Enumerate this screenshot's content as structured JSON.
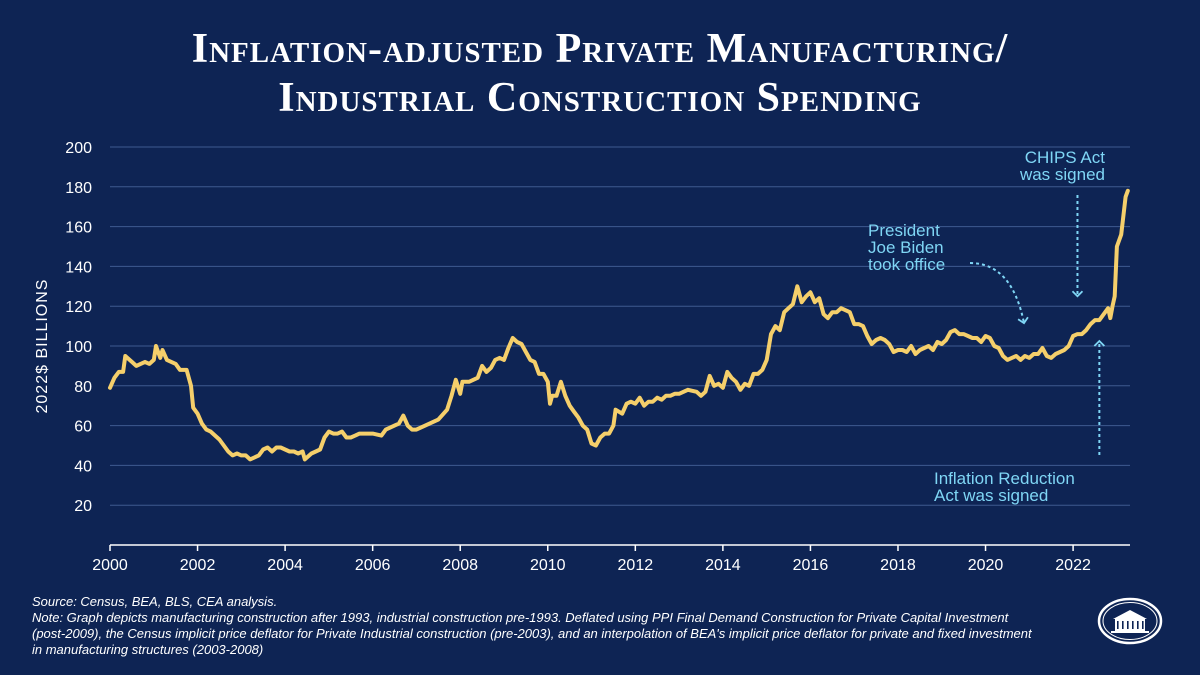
{
  "title_line1": "Inflation-adjusted Private Manufacturing/",
  "title_line2": "Industrial Construction Spending",
  "source": "Source: Census, BEA, BLS, CEA analysis.",
  "note": "Note: Graph depicts manufacturing construction after 1993, industrial construction pre-1993. Deflated using PPI Final Demand Construction for Private Capital Investment (post-2009), the Census implicit price deflator for Private Industrial construction (pre-2003), and an interpolation of BEA's implicit price deflator for private and fixed investment in manufacturing structures (2003-2008)",
  "colors": {
    "background": "#0e2454",
    "line": "#f5cf6b",
    "annotation": "#7fd6f5",
    "grid": "#3f5a8f",
    "text": "#ffffff"
  },
  "logo_icon": "white-house-seal-icon",
  "chart_data": {
    "type": "line",
    "ylabel": "2022$ BILLIONS",
    "xlabel": "",
    "xlim": [
      2000,
      2023.3
    ],
    "ylim": [
      0,
      200
    ],
    "x_ticks": [
      2000,
      2002,
      2004,
      2006,
      2008,
      2010,
      2012,
      2014,
      2016,
      2018,
      2020,
      2022
    ],
    "y_ticks": [
      20,
      40,
      60,
      80,
      100,
      120,
      140,
      160,
      180,
      200
    ],
    "grid": true,
    "annotations": [
      {
        "lines": [
          "CHIPS Act",
          "was signed"
        ],
        "x": 2022.1,
        "y": 120,
        "arrow": "down"
      },
      {
        "lines": [
          "President",
          "Joe Biden",
          "took office"
        ],
        "x": 2021.1,
        "y": 113,
        "arrow": "curved"
      },
      {
        "lines": [
          "Inflation Reduction",
          "Act was signed"
        ],
        "x": 2022.6,
        "y": 104,
        "arrow": "up"
      }
    ],
    "series": [
      {
        "points": [
          [
            2000.0,
            79
          ],
          [
            2000.1,
            84
          ],
          [
            2000.2,
            87
          ],
          [
            2000.3,
            87
          ],
          [
            2000.35,
            95
          ],
          [
            2000.5,
            92
          ],
          [
            2000.6,
            90
          ],
          [
            2000.7,
            91
          ],
          [
            2000.8,
            92
          ],
          [
            2000.9,
            91
          ],
          [
            2001.0,
            93
          ],
          [
            2001.05,
            100
          ],
          [
            2001.15,
            94
          ],
          [
            2001.2,
            98
          ],
          [
            2001.3,
            93
          ],
          [
            2001.4,
            92
          ],
          [
            2001.5,
            91
          ],
          [
            2001.6,
            88
          ],
          [
            2001.75,
            88
          ],
          [
            2001.85,
            80
          ],
          [
            2001.9,
            69
          ],
          [
            2002.0,
            66
          ],
          [
            2002.1,
            61
          ],
          [
            2002.2,
            58
          ],
          [
            2002.3,
            57
          ],
          [
            2002.4,
            55
          ],
          [
            2002.5,
            53
          ],
          [
            2002.6,
            50
          ],
          [
            2002.7,
            47
          ],
          [
            2002.8,
            45
          ],
          [
            2002.9,
            46
          ],
          [
            2003.0,
            45
          ],
          [
            2003.1,
            45
          ],
          [
            2003.2,
            43
          ],
          [
            2003.3,
            44
          ],
          [
            2003.4,
            45
          ],
          [
            2003.5,
            48
          ],
          [
            2003.6,
            49
          ],
          [
            2003.7,
            47
          ],
          [
            2003.8,
            49
          ],
          [
            2003.9,
            49
          ],
          [
            2004.0,
            48
          ],
          [
            2004.1,
            47
          ],
          [
            2004.2,
            47
          ],
          [
            2004.3,
            46
          ],
          [
            2004.4,
            47
          ],
          [
            2004.45,
            43
          ],
          [
            2004.6,
            46
          ],
          [
            2004.7,
            47
          ],
          [
            2004.8,
            48
          ],
          [
            2004.9,
            54
          ],
          [
            2005.0,
            57
          ],
          [
            2005.1,
            56
          ],
          [
            2005.2,
            56
          ],
          [
            2005.3,
            57
          ],
          [
            2005.4,
            54
          ],
          [
            2005.5,
            54
          ],
          [
            2005.6,
            55
          ],
          [
            2005.7,
            56
          ],
          [
            2005.8,
            56
          ],
          [
            2005.9,
            56
          ],
          [
            2006.0,
            56
          ],
          [
            2006.2,
            55
          ],
          [
            2006.3,
            58
          ],
          [
            2006.4,
            59
          ],
          [
            2006.5,
            60
          ],
          [
            2006.6,
            61
          ],
          [
            2006.7,
            65
          ],
          [
            2006.8,
            60
          ],
          [
            2006.9,
            58
          ],
          [
            2007.0,
            58
          ],
          [
            2007.2,
            60
          ],
          [
            2007.4,
            62
          ],
          [
            2007.5,
            63
          ],
          [
            2007.7,
            68
          ],
          [
            2007.8,
            75
          ],
          [
            2007.9,
            83
          ],
          [
            2008.0,
            76
          ],
          [
            2008.05,
            82
          ],
          [
            2008.2,
            82
          ],
          [
            2008.4,
            84
          ],
          [
            2008.5,
            90
          ],
          [
            2008.6,
            87
          ],
          [
            2008.7,
            89
          ],
          [
            2008.8,
            93
          ],
          [
            2008.9,
            94
          ],
          [
            2009.0,
            93
          ],
          [
            2009.1,
            99
          ],
          [
            2009.2,
            104
          ],
          [
            2009.3,
            102
          ],
          [
            2009.4,
            101
          ],
          [
            2009.5,
            97
          ],
          [
            2009.6,
            93
          ],
          [
            2009.7,
            92
          ],
          [
            2009.8,
            86
          ],
          [
            2009.9,
            86
          ],
          [
            2010.0,
            82
          ],
          [
            2010.05,
            71
          ],
          [
            2010.1,
            75
          ],
          [
            2010.2,
            75
          ],
          [
            2010.3,
            82
          ],
          [
            2010.4,
            75
          ],
          [
            2010.5,
            70
          ],
          [
            2010.6,
            67
          ],
          [
            2010.7,
            64
          ],
          [
            2010.8,
            60
          ],
          [
            2010.9,
            58
          ],
          [
            2011.0,
            51
          ],
          [
            2011.1,
            50
          ],
          [
            2011.2,
            54
          ],
          [
            2011.3,
            56
          ],
          [
            2011.4,
            56
          ],
          [
            2011.5,
            60
          ],
          [
            2011.55,
            68
          ],
          [
            2011.7,
            66
          ],
          [
            2011.8,
            71
          ],
          [
            2011.9,
            72
          ],
          [
            2012.0,
            71
          ],
          [
            2012.1,
            74
          ],
          [
            2012.2,
            70
          ],
          [
            2012.3,
            72
          ],
          [
            2012.4,
            72
          ],
          [
            2012.5,
            74
          ],
          [
            2012.6,
            73
          ],
          [
            2012.7,
            75
          ],
          [
            2012.8,
            75
          ],
          [
            2012.9,
            76
          ],
          [
            2013.0,
            76
          ],
          [
            2013.2,
            78
          ],
          [
            2013.4,
            77
          ],
          [
            2013.5,
            75
          ],
          [
            2013.6,
            77
          ],
          [
            2013.7,
            85
          ],
          [
            2013.8,
            80
          ],
          [
            2013.9,
            81
          ],
          [
            2014.0,
            79
          ],
          [
            2014.1,
            87
          ],
          [
            2014.2,
            84
          ],
          [
            2014.3,
            82
          ],
          [
            2014.4,
            78
          ],
          [
            2014.5,
            81
          ],
          [
            2014.6,
            80
          ],
          [
            2014.7,
            86
          ],
          [
            2014.8,
            86
          ],
          [
            2014.9,
            88
          ],
          [
            2015.0,
            93
          ],
          [
            2015.1,
            106
          ],
          [
            2015.2,
            110
          ],
          [
            2015.3,
            108
          ],
          [
            2015.4,
            117
          ],
          [
            2015.5,
            119
          ],
          [
            2015.6,
            121
          ],
          [
            2015.7,
            130
          ],
          [
            2015.8,
            122
          ],
          [
            2015.9,
            125
          ],
          [
            2016.0,
            127
          ],
          [
            2016.1,
            122
          ],
          [
            2016.2,
            124
          ],
          [
            2016.3,
            116
          ],
          [
            2016.4,
            114
          ],
          [
            2016.5,
            117
          ],
          [
            2016.6,
            117
          ],
          [
            2016.7,
            119
          ],
          [
            2016.8,
            118
          ],
          [
            2016.9,
            117
          ],
          [
            2017.0,
            111
          ],
          [
            2017.1,
            111
          ],
          [
            2017.2,
            110
          ],
          [
            2017.3,
            105
          ],
          [
            2017.4,
            101
          ],
          [
            2017.5,
            103
          ],
          [
            2017.6,
            104
          ],
          [
            2017.7,
            103
          ],
          [
            2017.8,
            101
          ],
          [
            2017.9,
            97
          ],
          [
            2018.0,
            98
          ],
          [
            2018.1,
            98
          ],
          [
            2018.2,
            97
          ],
          [
            2018.3,
            100
          ],
          [
            2018.4,
            96
          ],
          [
            2018.5,
            98
          ],
          [
            2018.6,
            99
          ],
          [
            2018.7,
            100
          ],
          [
            2018.8,
            98
          ],
          [
            2018.9,
            102
          ],
          [
            2019.0,
            101
          ],
          [
            2019.1,
            103
          ],
          [
            2019.2,
            107
          ],
          [
            2019.3,
            108
          ],
          [
            2019.4,
            106
          ],
          [
            2019.5,
            106
          ],
          [
            2019.6,
            105
          ],
          [
            2019.7,
            104
          ],
          [
            2019.8,
            104
          ],
          [
            2019.9,
            102
          ],
          [
            2020.0,
            105
          ],
          [
            2020.1,
            104
          ],
          [
            2020.2,
            100
          ],
          [
            2020.3,
            99
          ],
          [
            2020.4,
            95
          ],
          [
            2020.5,
            93
          ],
          [
            2020.6,
            94
          ],
          [
            2020.7,
            95
          ],
          [
            2020.8,
            93
          ],
          [
            2020.9,
            95
          ],
          [
            2021.0,
            94
          ],
          [
            2021.1,
            96
          ],
          [
            2021.2,
            96
          ],
          [
            2021.3,
            99
          ],
          [
            2021.4,
            95
          ],
          [
            2021.5,
            94
          ],
          [
            2021.6,
            96
          ],
          [
            2021.7,
            97
          ],
          [
            2021.8,
            98
          ],
          [
            2021.9,
            100
          ],
          [
            2022.0,
            105
          ],
          [
            2022.1,
            106
          ],
          [
            2022.2,
            106
          ],
          [
            2022.3,
            108
          ],
          [
            2022.4,
            111
          ],
          [
            2022.5,
            113
          ],
          [
            2022.6,
            113
          ],
          [
            2022.7,
            116
          ],
          [
            2022.8,
            119
          ],
          [
            2022.85,
            114
          ],
          [
            2022.9,
            120
          ],
          [
            2022.95,
            125
          ],
          [
            2023.0,
            150
          ],
          [
            2023.1,
            156
          ],
          [
            2023.2,
            175
          ],
          [
            2023.25,
            178
          ]
        ]
      }
    ]
  }
}
